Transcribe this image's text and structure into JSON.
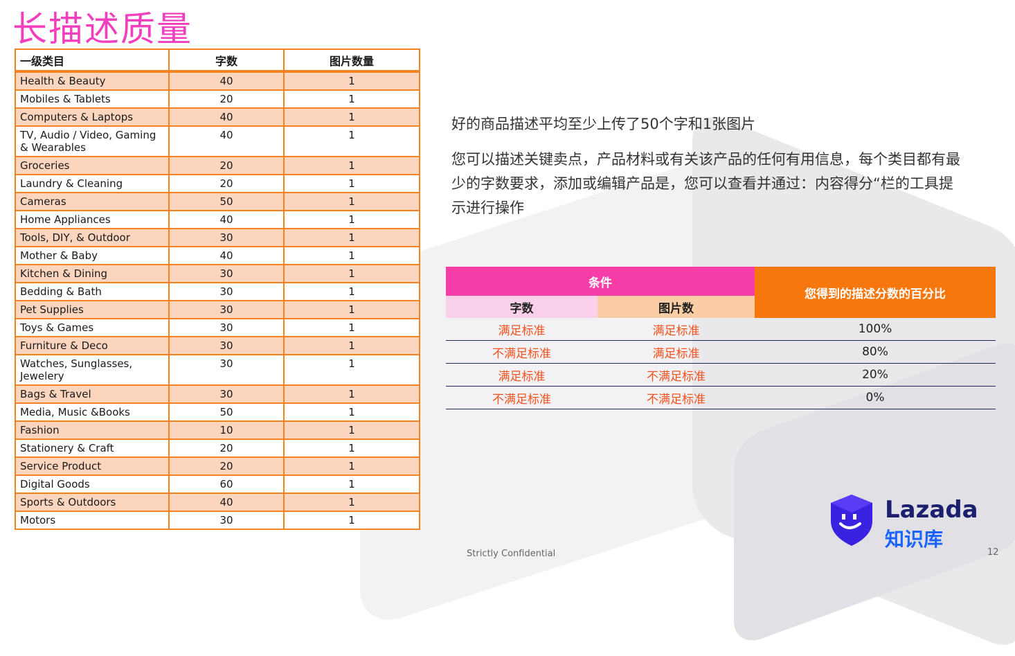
{
  "slide": {
    "title": "长描述质量",
    "footer": "Strictly Confidential",
    "page_number": "12"
  },
  "category_table": {
    "headers": [
      "一级类目",
      "字数",
      "图片数量"
    ],
    "rows": [
      [
        "Health & Beauty",
        "40",
        "1"
      ],
      [
        "Mobiles & Tablets",
        "20",
        "1"
      ],
      [
        "Computers & Laptops",
        "40",
        "1"
      ],
      [
        "TV, Audio / Video, Gaming & Wearables",
        "40",
        "1"
      ],
      [
        "Groceries",
        "20",
        "1"
      ],
      [
        "Laundry & Cleaning",
        "20",
        "1"
      ],
      [
        "Cameras",
        "50",
        "1"
      ],
      [
        "Home Appliances",
        "40",
        "1"
      ],
      [
        "Tools, DIY, & Outdoor",
        "30",
        "1"
      ],
      [
        "Mother & Baby",
        "40",
        "1"
      ],
      [
        "Kitchen & Dining",
        "30",
        "1"
      ],
      [
        "Bedding & Bath",
        "30",
        "1"
      ],
      [
        "Pet Supplies",
        "30",
        "1"
      ],
      [
        "Toys & Games",
        "30",
        "1"
      ],
      [
        "Furniture & Deco",
        "30",
        "1"
      ],
      [
        "Watches, Sunglasses, Jewelery",
        "30",
        "1"
      ],
      [
        "Bags & Travel",
        "30",
        "1"
      ],
      [
        "Media, Music &Books",
        "50",
        "1"
      ],
      [
        "Fashion",
        "10",
        "1"
      ],
      [
        "Stationery & Craft",
        "20",
        "1"
      ],
      [
        "Service Product",
        "20",
        "1"
      ],
      [
        "Digital Goods",
        "60",
        "1"
      ],
      [
        "Sports & Outdoors",
        "40",
        "1"
      ],
      [
        "Motors",
        "30",
        "1"
      ]
    ]
  },
  "description": {
    "line1": "好的商品描述平均至少上传了50个字和1张图片",
    "line2": "您可以描述关键卖点，产品材料或有关该产品的任何有用信息，每个类目都有最少的字数要求，添加或编辑产品是，您可以查看并通过：内容得分“栏的工具提示进行操作"
  },
  "score_table": {
    "condition_header": "条件",
    "percent_header": "您得到的描述分数的百分比",
    "sub_headers": [
      "字数",
      "图片数"
    ],
    "rows": [
      [
        "满足标准",
        "满足标准",
        "100%"
      ],
      [
        "不满足标准",
        "满足标准",
        "80%"
      ],
      [
        "满足标准",
        "不满足标准",
        "20%"
      ],
      [
        "不满足标准",
        "不满足标准",
        "0%"
      ]
    ]
  },
  "logo": {
    "brand": "Lazada",
    "sub": "知识库"
  },
  "colors": {
    "title": "#f23fbe",
    "table_border": "#f5821f",
    "row_highlight": "#fbd5bd",
    "condition_pink": "#f73ea8",
    "percent_orange": "#f7770f",
    "status_text": "#f4511e",
    "logo_navy": "#1a1f6e",
    "logo_blue": "#1b63ff"
  }
}
